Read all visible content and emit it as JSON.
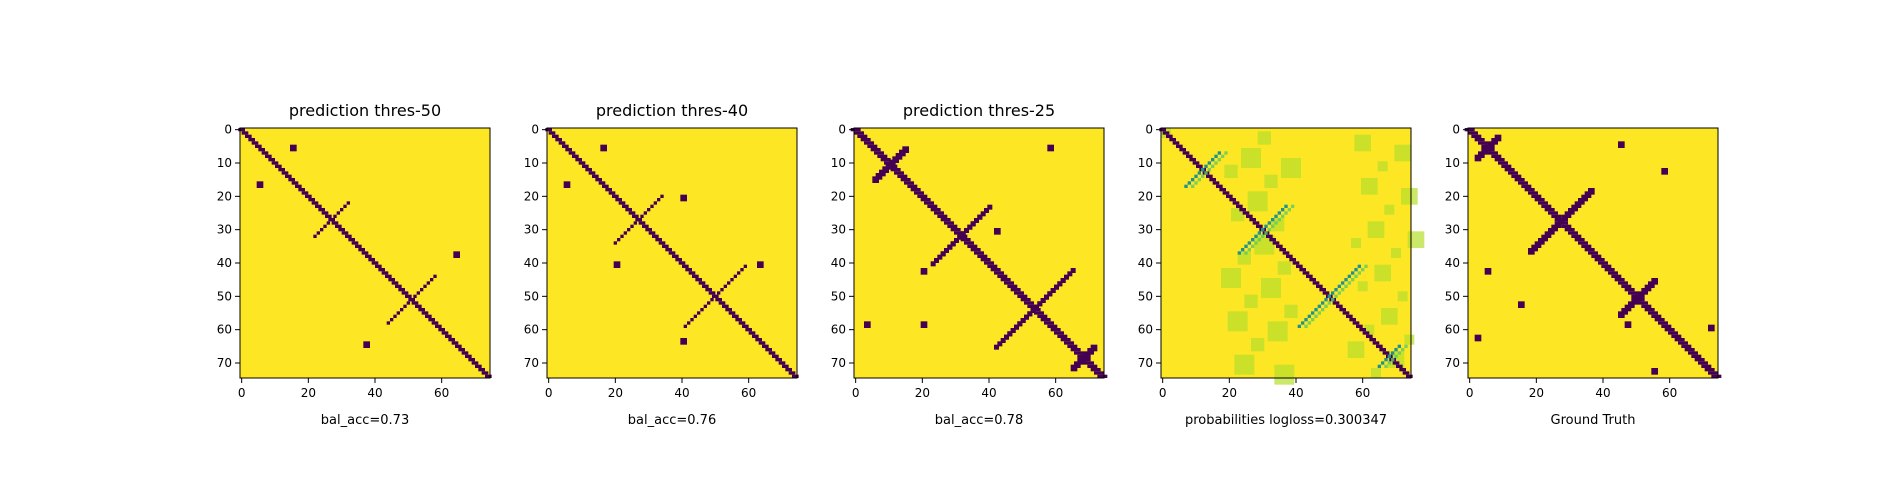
{
  "colors": {
    "background": "#440154",
    "foreground": "#fde725",
    "mid_teal": "#21918c",
    "mid_green": "#5ec962",
    "light_lime": "#b5de2b"
  },
  "chart_data": [
    {
      "type": "heatmap",
      "title": "prediction thres-50",
      "xlabel": "bal_acc=0.73",
      "ylabel": "",
      "size": 75,
      "xticks": [
        "0",
        "20",
        "40",
        "60"
      ],
      "yticks": [
        "0",
        "10",
        "20",
        "30",
        "40",
        "50",
        "60",
        "70"
      ],
      "colormap": "viridis",
      "binary": true,
      "features": [
        {
          "kind": "diagonal",
          "width": 2
        },
        {
          "kind": "crossing",
          "center": 27,
          "length": 10,
          "width": 1
        },
        {
          "kind": "crossing",
          "center": 51,
          "length": 14,
          "width": 1
        },
        {
          "kind": "blob",
          "x": 15,
          "y": 5
        },
        {
          "kind": "blob",
          "x": 5,
          "y": 16
        },
        {
          "kind": "blob",
          "x": 37,
          "y": 64
        },
        {
          "kind": "blob",
          "x": 64,
          "y": 37
        }
      ]
    },
    {
      "type": "heatmap",
      "title": "prediction thres-40",
      "xlabel": "bal_acc=0.76",
      "ylabel": "",
      "size": 75,
      "xticks": [
        "0",
        "20",
        "40",
        "60"
      ],
      "yticks": [
        "0",
        "10",
        "20",
        "30",
        "40",
        "50",
        "60",
        "70"
      ],
      "colormap": "viridis",
      "binary": true,
      "features": [
        {
          "kind": "diagonal",
          "width": 2
        },
        {
          "kind": "crossing",
          "center": 27,
          "length": 14,
          "width": 1
        },
        {
          "kind": "crossing",
          "center": 50,
          "length": 18,
          "width": 1
        },
        {
          "kind": "blob",
          "x": 16,
          "y": 5
        },
        {
          "kind": "blob",
          "x": 5,
          "y": 16
        },
        {
          "kind": "blob",
          "x": 40,
          "y": 20
        },
        {
          "kind": "blob",
          "x": 20,
          "y": 40
        },
        {
          "kind": "blob",
          "x": 63,
          "y": 40
        },
        {
          "kind": "blob",
          "x": 40,
          "y": 63
        }
      ]
    },
    {
      "type": "heatmap",
      "title": "prediction thres-25",
      "xlabel": "bal_acc=0.78",
      "ylabel": "",
      "size": 75,
      "xticks": [
        "0",
        "20",
        "40",
        "60"
      ],
      "yticks": [
        "0",
        "10",
        "20",
        "30",
        "40",
        "50",
        "60",
        "70"
      ],
      "colormap": "viridis",
      "binary": true,
      "features": [
        {
          "kind": "diagonal",
          "width": 3
        },
        {
          "kind": "crossing",
          "center": 10,
          "length": 9,
          "width": 2
        },
        {
          "kind": "loop",
          "center": 30,
          "length": 14
        },
        {
          "kind": "loop",
          "center": 52,
          "length": 20
        },
        {
          "kind": "crossing",
          "center": 68,
          "length": 6,
          "width": 2
        },
        {
          "kind": "blob",
          "x": 58,
          "y": 5
        },
        {
          "kind": "blob",
          "x": 42,
          "y": 30
        },
        {
          "kind": "blob",
          "x": 20,
          "y": 42
        },
        {
          "kind": "blob",
          "x": 20,
          "y": 58
        },
        {
          "kind": "blob",
          "x": 3,
          "y": 58
        }
      ]
    },
    {
      "type": "heatmap",
      "title": "",
      "xlabel": "probabilities logloss=0.300347",
      "ylabel": "",
      "size": 75,
      "xticks": [
        "0",
        "20",
        "40",
        "60"
      ],
      "yticks": [
        "0",
        "10",
        "20",
        "30",
        "40",
        "50",
        "60",
        "70"
      ],
      "colormap": "viridis",
      "binary": false,
      "features": [
        {
          "kind": "diagonal",
          "width": 2
        },
        {
          "kind": "soft-crossing",
          "center": 12,
          "length": 10
        },
        {
          "kind": "soft-crossing",
          "center": 30,
          "length": 14
        },
        {
          "kind": "soft-crossing",
          "center": 50,
          "length": 18
        },
        {
          "kind": "soft-crossing",
          "center": 68,
          "length": 6
        }
      ]
    },
    {
      "type": "heatmap",
      "title": "",
      "xlabel": "Ground Truth",
      "ylabel": "",
      "size": 75,
      "xticks": [
        "0",
        "20",
        "40",
        "60"
      ],
      "yticks": [
        "0",
        "10",
        "20",
        "30",
        "40",
        "50",
        "60",
        "70"
      ],
      "colormap": "viridis",
      "binary": true,
      "features": [
        {
          "kind": "diagonal",
          "width": 3
        },
        {
          "kind": "crossing",
          "center": 5,
          "length": 6,
          "width": 2
        },
        {
          "kind": "crossing",
          "center": 27,
          "length": 18,
          "width": 2
        },
        {
          "kind": "crossing",
          "center": 50,
          "length": 10,
          "width": 2
        },
        {
          "kind": "blob",
          "x": 45,
          "y": 4
        },
        {
          "kind": "blob",
          "x": 58,
          "y": 12
        },
        {
          "kind": "blob",
          "x": 5,
          "y": 42
        },
        {
          "kind": "blob",
          "x": 15,
          "y": 52
        },
        {
          "kind": "blob",
          "x": 72,
          "y": 59
        },
        {
          "kind": "blob",
          "x": 55,
          "y": 72
        },
        {
          "kind": "blob",
          "x": 2,
          "y": 62
        },
        {
          "kind": "blob",
          "x": 47,
          "y": 58
        }
      ]
    }
  ]
}
